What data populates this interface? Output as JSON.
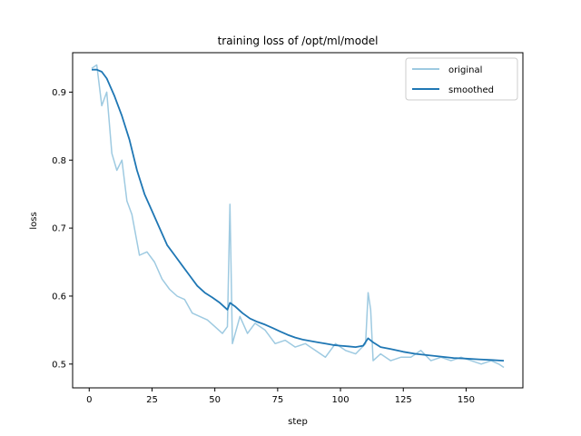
{
  "chart_data": {
    "type": "line",
    "title": "training loss of /opt/ml/model",
    "xlabel": "step",
    "ylabel": "loss",
    "xlim": [
      -6.6,
      172.6
    ],
    "ylim": [
      0.465,
      0.958
    ],
    "xticks": [
      0,
      25,
      50,
      75,
      100,
      125,
      150
    ],
    "yticks": [
      0.5,
      0.6,
      0.7,
      0.8,
      0.9
    ],
    "ytick_labels": [
      "0.5",
      "0.6",
      "0.7",
      "0.8",
      "0.9"
    ],
    "legend_position": "top-right",
    "grid": false,
    "series": [
      {
        "name": "original",
        "color": "#9ecae1",
        "x": [
          1,
          3,
          5,
          7,
          9,
          11,
          13,
          15,
          17,
          20,
          23,
          26,
          29,
          32,
          35,
          38,
          41,
          44,
          47,
          50,
          53,
          55,
          56,
          57,
          60,
          63,
          66,
          70,
          74,
          78,
          82,
          86,
          90,
          94,
          98,
          102,
          106,
          110,
          111,
          112,
          113,
          116,
          120,
          124,
          128,
          132,
          136,
          140,
          144,
          148,
          152,
          156,
          160,
          163,
          165
        ],
        "values": [
          0.935,
          0.94,
          0.88,
          0.9,
          0.81,
          0.785,
          0.8,
          0.74,
          0.72,
          0.66,
          0.665,
          0.65,
          0.625,
          0.61,
          0.6,
          0.595,
          0.575,
          0.57,
          0.565,
          0.555,
          0.545,
          0.555,
          0.735,
          0.53,
          0.57,
          0.545,
          0.56,
          0.55,
          0.53,
          0.535,
          0.525,
          0.53,
          0.52,
          0.51,
          0.53,
          0.52,
          0.515,
          0.53,
          0.605,
          0.58,
          0.505,
          0.515,
          0.505,
          0.51,
          0.51,
          0.52,
          0.505,
          0.51,
          0.505,
          0.51,
          0.505,
          0.5,
          0.505,
          0.5,
          0.495
        ]
      },
      {
        "name": "smoothed",
        "color": "#1f77b4",
        "x": [
          1,
          3,
          5,
          7,
          10,
          13,
          16,
          19,
          22,
          25,
          28,
          31,
          34,
          37,
          40,
          43,
          46,
          49,
          52,
          55,
          56,
          58,
          61,
          64,
          67,
          70,
          73,
          76,
          79,
          82,
          85,
          88,
          91,
          94,
          97,
          100,
          103,
          106,
          109,
          111,
          113,
          116,
          120,
          125,
          130,
          135,
          140,
          145,
          150,
          155,
          160,
          165
        ],
        "values": [
          0.933,
          0.933,
          0.93,
          0.92,
          0.895,
          0.865,
          0.83,
          0.785,
          0.75,
          0.725,
          0.7,
          0.675,
          0.66,
          0.645,
          0.63,
          0.615,
          0.605,
          0.598,
          0.59,
          0.58,
          0.59,
          0.585,
          0.575,
          0.567,
          0.562,
          0.558,
          0.553,
          0.548,
          0.543,
          0.539,
          0.536,
          0.534,
          0.532,
          0.53,
          0.528,
          0.527,
          0.526,
          0.525,
          0.527,
          0.538,
          0.532,
          0.525,
          0.522,
          0.518,
          0.515,
          0.513,
          0.511,
          0.509,
          0.508,
          0.507,
          0.506,
          0.505
        ]
      }
    ]
  }
}
